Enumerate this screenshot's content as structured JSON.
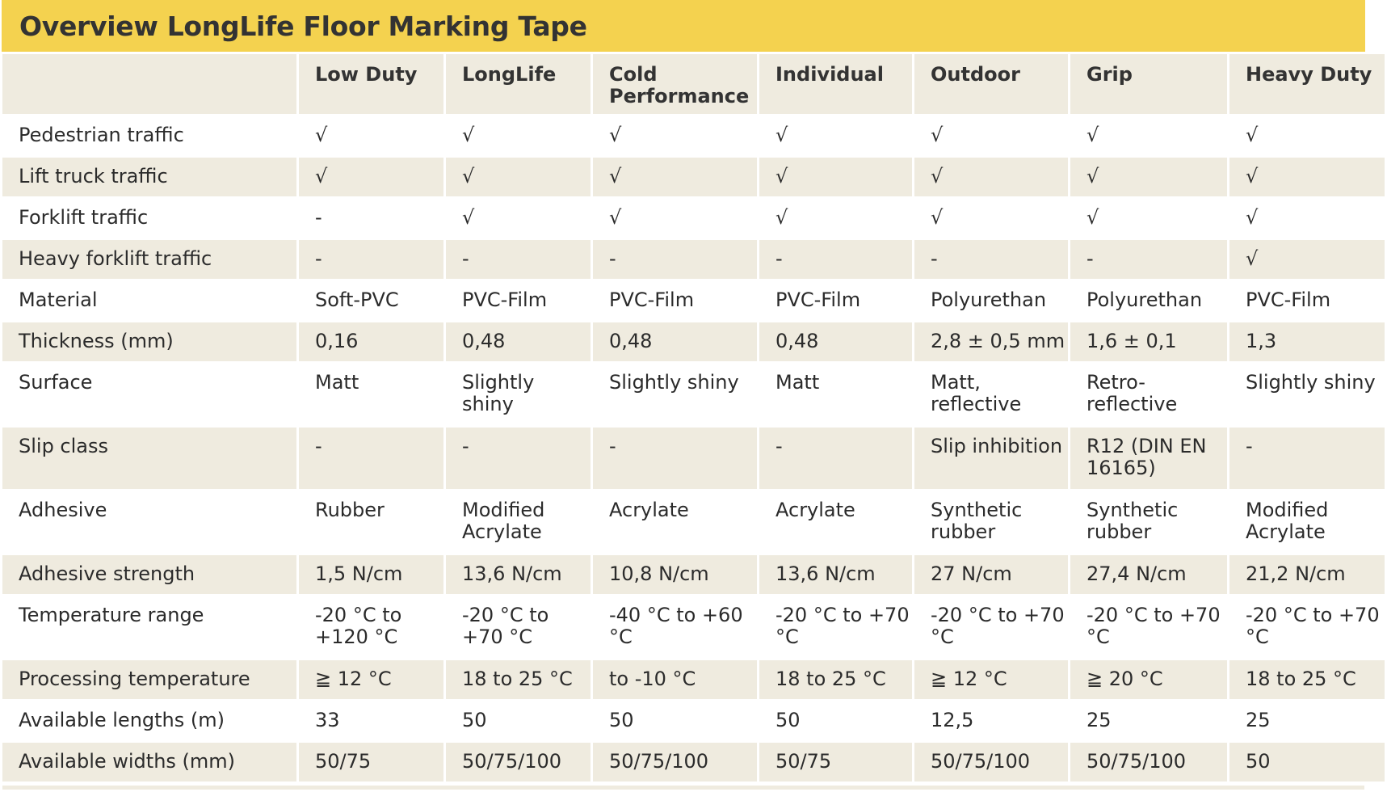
{
  "title": "Overview LongLife Floor Marking Tape",
  "columns": [
    "",
    "Low Duty",
    "LongLife",
    "Cold Performance",
    "Individual",
    "Outdoor",
    "Grip",
    "Heavy Duty"
  ],
  "rows": [
    {
      "label": "Pedestrian traffic",
      "values": [
        "√",
        "√",
        "√",
        "√",
        "√",
        "√",
        "√"
      ]
    },
    {
      "label": "Lift truck traffic",
      "values": [
        "√",
        "√",
        "√",
        "√",
        "√",
        "√",
        "√"
      ]
    },
    {
      "label": "Forklift traffic",
      "values": [
        "-",
        "√",
        "√",
        "√",
        "√",
        "√",
        "√"
      ]
    },
    {
      "label": "Heavy forklift traffic",
      "values": [
        "-",
        "-",
        "-",
        "-",
        "-",
        "-",
        "√"
      ]
    },
    {
      "label": "Material",
      "values": [
        "Soft-PVC",
        "PVC-Film",
        "PVC-Film",
        "PVC-Film",
        "Polyurethan",
        "Polyurethan",
        "PVC-Film"
      ]
    },
    {
      "label": "Thickness (mm)",
      "values": [
        "0,16",
        "0,48",
        "0,48",
        "0,48",
        "2,8 ± 0,5 mm",
        "1,6 ± 0,1",
        "1,3"
      ]
    },
    {
      "label": "Surface",
      "values": [
        "Matt",
        "Slightly shiny",
        "Slightly shiny",
        "Matt",
        "Matt, reflective",
        "Retro-reflective",
        "Slightly shiny"
      ]
    },
    {
      "label": "Slip class",
      "values": [
        "-",
        "-",
        "-",
        "-",
        "Slip inhibition",
        "R12 (DIN EN 16165)",
        "-"
      ]
    },
    {
      "label": "Adhesive",
      "values": [
        "Rubber",
        "Modified Acrylate",
        "Acrylate",
        "Acrylate",
        "Synthetic rubber",
        "Synthetic rubber",
        "Modified Acrylate"
      ]
    },
    {
      "label": "Adhesive strength",
      "values": [
        "1,5 N/cm",
        "13,6 N/cm",
        "10,8 N/cm",
        "13,6 N/cm",
        "27 N/cm",
        "27,4 N/cm",
        "21,2 N/cm"
      ]
    },
    {
      "label": "Temperature range",
      "values": [
        "-20 °C to +120 °C",
        "-20 °C to +70 °C",
        "-40 °C to +60 °C",
        "-20 °C to +70 °C",
        "-20 °C to +70 °C",
        "-20 °C to +70 °C",
        "-20 °C to +70 °C"
      ]
    },
    {
      "label": "Processing temperature",
      "values": [
        "≧ 12 °C",
        "18 to 25 °C",
        "to -10 °C",
        "18 to 25 °C",
        "≧ 12 °C",
        "≧ 20 °C",
        "18 to  25 °C"
      ]
    },
    {
      "label": "Available lengths (m)",
      "values": [
        "33",
        "50",
        "50",
        "50",
        "12,5",
        "25",
        "25"
      ]
    },
    {
      "label": "Available widths (mm)",
      "values": [
        "50/75",
        "50/75/100",
        "50/75/100",
        "50/75",
        "50/75/100",
        "50/75/100",
        "50"
      ]
    }
  ],
  "colors": {
    "title_bg": "#f4d24f",
    "stripe": "#efebdf"
  }
}
